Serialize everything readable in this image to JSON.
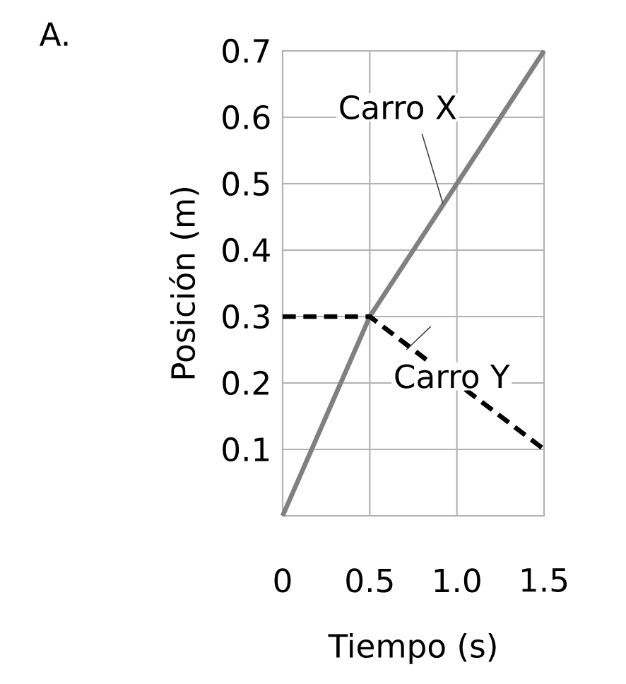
{
  "chart_data": {
    "type": "line",
    "annotations": [
      "A."
    ],
    "xlabel": "Tiempo (s)",
    "ylabel": "Posición (m)",
    "xlim": [
      0,
      1.5
    ],
    "ylim": [
      0,
      0.7
    ],
    "xticks": [
      0,
      0.5,
      {
        "value": 1.0,
        "label": "1.0"
      },
      1.5
    ],
    "yticks": [
      {
        "value": 0,
        "label": null
      },
      0.1,
      0.2,
      0.3,
      0.4,
      0.5,
      0.6,
      0.7
    ],
    "grid": true,
    "marker": "none",
    "series": [
      {
        "name": "Carro X",
        "color": "#808080",
        "line_style": "solid",
        "x": [
          0,
          0.5,
          1.5
        ],
        "values": [
          0,
          0.3,
          0.7
        ]
      },
      {
        "name": "Carro Y",
        "color": "#000000",
        "line_style": "dashed",
        "x": [
          0,
          0.5,
          1.5
        ],
        "values": [
          0.3,
          0.3,
          0.1
        ]
      }
    ]
  }
}
